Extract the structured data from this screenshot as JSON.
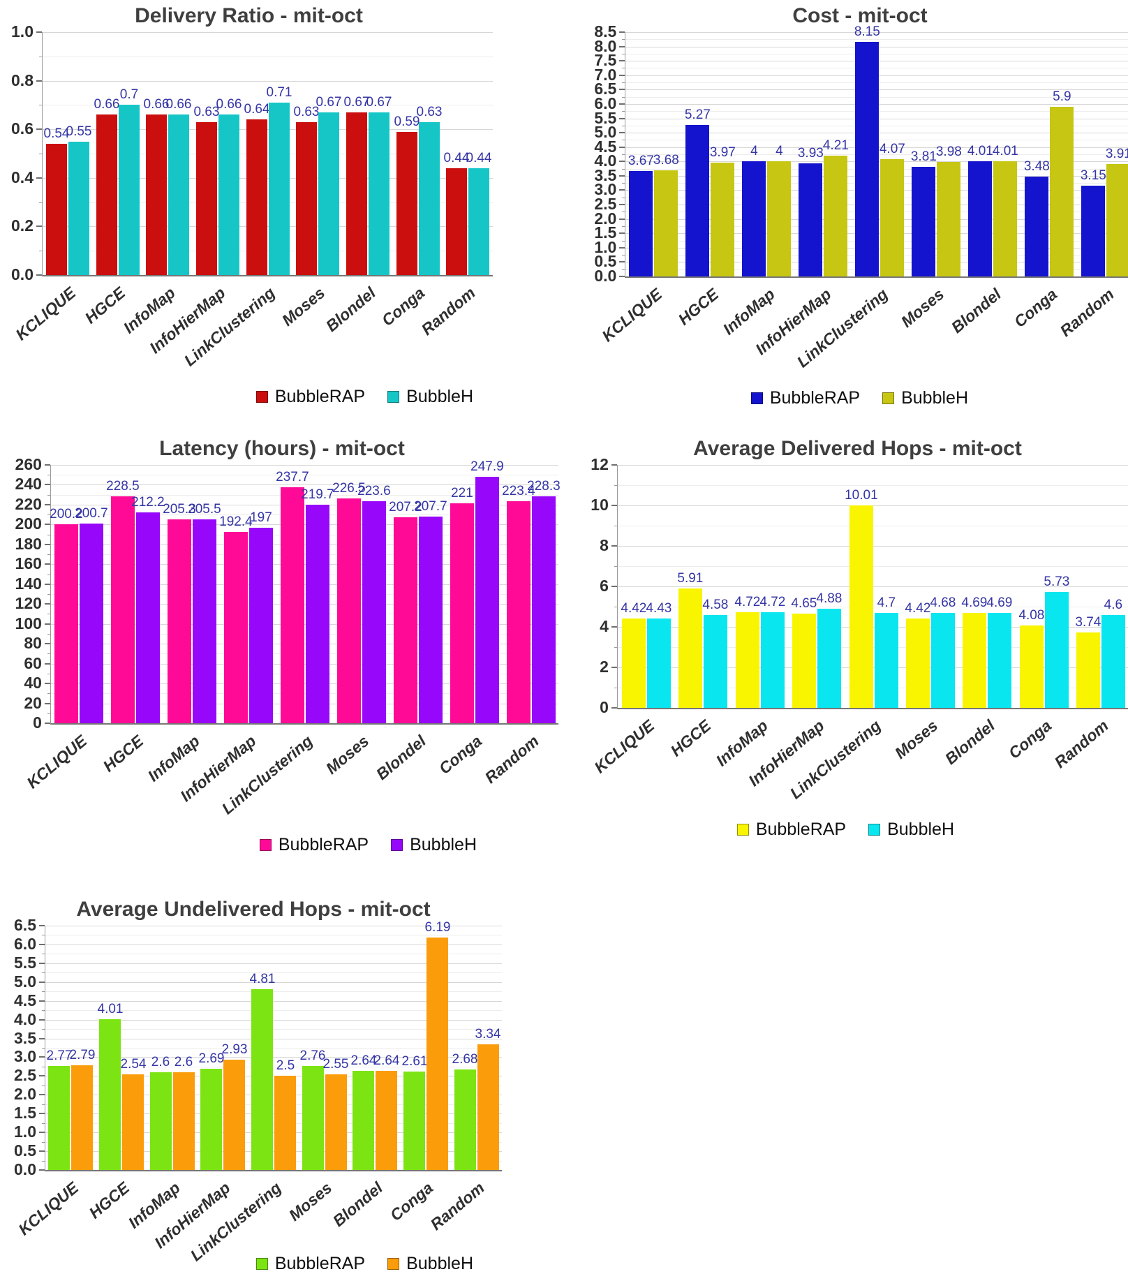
{
  "dataset": "mit-oct",
  "colors": {
    "value_label": "#3535A6",
    "title": "#3F3F3F",
    "tick_label": "#2F2F2F",
    "axis_line": "#767676",
    "grid_major": "#D7D7D7",
    "grid_minor": "#EDEDED"
  },
  "chart_data": [
    {
      "id": "delivery-ratio",
      "type": "bar",
      "title": "Delivery Ratio - mit-oct",
      "xlabel": "",
      "ylabel": "",
      "grid": true,
      "legend_position": "bottom-right",
      "categories": [
        "KCLIQUE",
        "HGCE",
        "InfoMap",
        "InfoHierMap",
        "LinkClustering",
        "Moses",
        "Blondel",
        "Conga",
        "Random"
      ],
      "series": [
        {
          "name": "BubbleRAP",
          "color": "#CB0F0F",
          "values": [
            0.54,
            0.66,
            0.66,
            0.63,
            0.64,
            0.63,
            0.67,
            0.59,
            0.44
          ]
        },
        {
          "name": "BubbleH",
          "color": "#16C6C6",
          "values": [
            0.55,
            0.7,
            0.66,
            0.66,
            0.71,
            0.67,
            0.67,
            0.63,
            0.44
          ]
        }
      ],
      "ylim": [
        0,
        1.0
      ],
      "ymajor": 0.2,
      "yminor": 0.1,
      "ytick_decimals": 1
    },
    {
      "id": "cost",
      "type": "bar",
      "title": "Cost - mit-oct",
      "xlabel": "",
      "ylabel": "",
      "grid": true,
      "legend_position": "bottom-right",
      "categories": [
        "KCLIQUE",
        "HGCE",
        "InfoMap",
        "InfoHierMap",
        "LinkClustering",
        "Moses",
        "Blondel",
        "Conga",
        "Random"
      ],
      "series": [
        {
          "name": "BubbleRAP",
          "color": "#1414CE",
          "values": [
            3.67,
            5.27,
            4,
            3.93,
            8.15,
            3.81,
            4.01,
            3.48,
            3.15
          ]
        },
        {
          "name": "BubbleH",
          "color": "#C6C613",
          "values": [
            3.68,
            3.97,
            4,
            4.21,
            4.07,
            3.98,
            4.01,
            5.9,
            3.91
          ]
        }
      ],
      "ylim": [
        0,
        8.5
      ],
      "ymajor": 0.5,
      "yminor": 0.25,
      "ytick_decimals": 1
    },
    {
      "id": "latency-hours",
      "type": "bar",
      "title": "Latency (hours) - mit-oct",
      "xlabel": "",
      "ylabel": "",
      "grid": true,
      "legend_position": "bottom-right",
      "categories": [
        "KCLIQUE",
        "HGCE",
        "InfoMap",
        "InfoHierMap",
        "LinkClustering",
        "Moses",
        "Blondel",
        "Conga",
        "Random"
      ],
      "series": [
        {
          "name": "BubbleRAP",
          "color": "#FF0A96",
          "values": [
            200.2,
            228.5,
            205.3,
            192.4,
            237.7,
            226.5,
            207.2,
            221,
            223.4
          ]
        },
        {
          "name": "BubbleH",
          "color": "#9708FA",
          "values": [
            200.7,
            212.2,
            205.5,
            197,
            219.7,
            223.6,
            207.7,
            247.9,
            228.3
          ]
        }
      ],
      "ylim": [
        0,
        260
      ],
      "ymajor": 20,
      "yminor": 10,
      "ytick_decimals": 0
    },
    {
      "id": "average-delivered-hops",
      "type": "bar",
      "title": "Average Delivered Hops - mit-oct",
      "xlabel": "",
      "ylabel": "",
      "grid": true,
      "legend_position": "bottom-right",
      "categories": [
        "KCLIQUE",
        "HGCE",
        "InfoMap",
        "InfoHierMap",
        "LinkClustering",
        "Moses",
        "Blondel",
        "Conga",
        "Random"
      ],
      "series": [
        {
          "name": "BubbleRAP",
          "color": "#F9F400",
          "values": [
            4.42,
            5.91,
            4.72,
            4.65,
            10.01,
            4.42,
            4.69,
            4.08,
            3.74
          ]
        },
        {
          "name": "BubbleH",
          "color": "#0AE6EF",
          "values": [
            4.43,
            4.58,
            4.72,
            4.88,
            4.7,
            4.68,
            4.69,
            5.73,
            4.6
          ]
        }
      ],
      "ylim": [
        0,
        12
      ],
      "ymajor": 2,
      "yminor": 1,
      "ytick_decimals": 0
    },
    {
      "id": "average-undelivered-hops",
      "type": "bar",
      "title": "Average Undelivered Hops - mit-oct",
      "xlabel": "",
      "ylabel": "",
      "grid": true,
      "legend_position": "bottom-right",
      "categories": [
        "KCLIQUE",
        "HGCE",
        "InfoMap",
        "InfoHierMap",
        "LinkClustering",
        "Moses",
        "Blondel",
        "Conga",
        "Random"
      ],
      "series": [
        {
          "name": "BubbleRAP",
          "color": "#7CE413",
          "values": [
            2.77,
            4.01,
            2.6,
            2.69,
            4.81,
            2.76,
            2.64,
            2.61,
            2.68
          ]
        },
        {
          "name": "BubbleH",
          "color": "#FB9D0A",
          "values": [
            2.79,
            2.54,
            2.6,
            2.93,
            2.5,
            2.55,
            2.64,
            6.19,
            3.34
          ]
        }
      ],
      "ylim": [
        0,
        6.5
      ],
      "ymajor": 0.5,
      "yminor": 0.25,
      "ytick_decimals": 1
    }
  ]
}
